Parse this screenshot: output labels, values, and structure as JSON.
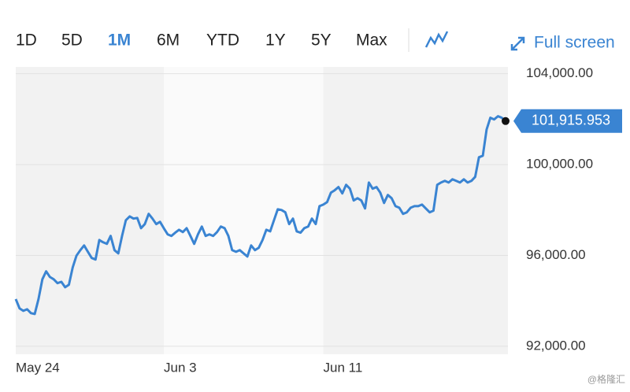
{
  "toolbar": {
    "ranges": [
      "1D",
      "5D",
      "1M",
      "6M",
      "YTD",
      "1Y",
      "5Y",
      "Max"
    ],
    "selected": "1M",
    "full_screen": "Full screen"
  },
  "watermark": "@格隆汇",
  "chart_data": {
    "type": "line",
    "categories": [
      "May 24",
      null,
      null,
      null,
      null,
      null,
      null,
      null,
      null,
      null,
      null,
      null,
      null,
      null,
      null,
      null,
      null,
      null,
      null,
      null,
      null,
      null,
      null,
      null,
      null,
      null,
      null,
      null,
      null,
      null,
      null,
      null,
      null,
      null,
      null,
      null,
      null,
      null,
      null,
      "Jun 3",
      null,
      null,
      null,
      null,
      null,
      null,
      null,
      null,
      null,
      null,
      null,
      null,
      null,
      null,
      null,
      null,
      null,
      null,
      null,
      null,
      null,
      null,
      null,
      null,
      null,
      null,
      null,
      null,
      null,
      null,
      null,
      null,
      null,
      null,
      null,
      null,
      null,
      null,
      null,
      null,
      null,
      "Jun 11",
      null,
      null,
      null,
      null,
      null,
      null,
      null,
      null,
      null,
      null,
      null,
      null,
      null,
      null,
      null,
      null,
      null,
      null,
      null,
      null,
      null,
      null,
      null,
      null,
      null,
      null,
      null,
      null,
      null,
      null,
      null,
      null,
      null,
      null,
      null,
      null,
      null,
      null,
      null,
      null,
      null,
      null,
      null,
      null,
      null,
      null,
      null,
      null
    ],
    "series": [
      {
        "color": "#3a84d2",
        "values": [
          94080,
          93670,
          93560,
          93630,
          93460,
          93420,
          94080,
          94950,
          95300,
          95050,
          94950,
          94780,
          94840,
          94600,
          94710,
          95470,
          95990,
          96230,
          96440,
          96160,
          95890,
          95820,
          96680,
          96580,
          96510,
          96860,
          96230,
          96090,
          96860,
          97550,
          97720,
          97620,
          97650,
          97200,
          97380,
          97830,
          97620,
          97380,
          97480,
          97200,
          96930,
          96860,
          97000,
          97130,
          97030,
          97200,
          96860,
          96510,
          96930,
          97270,
          96860,
          96930,
          96860,
          97030,
          97270,
          97200,
          96860,
          96230,
          96160,
          96230,
          96090,
          95950,
          96440,
          96230,
          96340,
          96680,
          97130,
          97060,
          97550,
          98030,
          98000,
          97900,
          97380,
          97620,
          97060,
          97000,
          97200,
          97270,
          97620,
          97380,
          98170,
          98240,
          98350,
          98760,
          98870,
          99010,
          98730,
          99110,
          98940,
          98420,
          98520,
          98420,
          98070,
          99210,
          98940,
          99010,
          98760,
          98310,
          98660,
          98520,
          98170,
          98100,
          97830,
          97900,
          98100,
          98170,
          98170,
          98240,
          98070,
          97900,
          97970,
          99110,
          99210,
          99280,
          99210,
          99350,
          99280,
          99210,
          99350,
          99210,
          99280,
          99460,
          100320,
          100390,
          101540,
          102060,
          101990,
          102130,
          102060,
          101915.953
        ]
      }
    ],
    "current": {
      "value": 101915.953,
      "label": "101,915.953"
    },
    "ylim": [
      91650,
      104300
    ],
    "yticks": [
      {
        "value": 104000,
        "label": "104,000.00"
      },
      {
        "value": 100000,
        "label": "100,000.00"
      },
      {
        "value": 96000,
        "label": "96,000.00"
      },
      {
        "value": 92000,
        "label": "92,000.00"
      }
    ],
    "grid": true
  }
}
